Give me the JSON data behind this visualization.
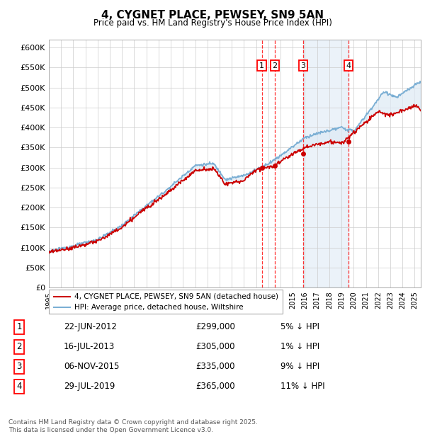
{
  "title": "4, CYGNET PLACE, PEWSEY, SN9 5AN",
  "subtitle": "Price paid vs. HM Land Registry's House Price Index (HPI)",
  "ylim": [
    0,
    620000
  ],
  "yticks": [
    0,
    50000,
    100000,
    150000,
    200000,
    250000,
    300000,
    350000,
    400000,
    450000,
    500000,
    550000,
    600000
  ],
  "xlim_start": 1995.0,
  "xlim_end": 2025.5,
  "background_color": "#ffffff",
  "grid_color": "#cccccc",
  "hpi_color": "#7bafd4",
  "hpi_fill_color": "#deeaf5",
  "price_color": "#cc0000",
  "legend_hpi_label": "HPI: Average price, detached house, Wiltshire",
  "legend_price_label": "4, CYGNET PLACE, PEWSEY, SN9 5AN (detached house)",
  "sale_dates": [
    2012.472,
    2013.538,
    2015.846,
    2019.575
  ],
  "sale_prices": [
    299000,
    305000,
    335000,
    365000
  ],
  "sale_labels": [
    "1",
    "2",
    "3",
    "4"
  ],
  "sale_label_pcts": [
    "5% ↓ HPI",
    "1% ↓ HPI",
    "9% ↓ HPI",
    "11% ↓ HPI"
  ],
  "sale_label_dates_str": [
    "22-JUN-2012",
    "16-JUL-2013",
    "06-NOV-2015",
    "29-JUL-2019"
  ],
  "sale_label_prices_str": [
    "£299,000",
    "£305,000",
    "£335,000",
    "£365,000"
  ],
  "footer_line1": "Contains HM Land Registry data © Crown copyright and database right 2025.",
  "footer_line2": "This data is licensed under the Open Government Licence v3.0.",
  "shade_regions": [
    [
      2015.846,
      2019.575
    ]
  ],
  "shade_color": "#deeaf5"
}
